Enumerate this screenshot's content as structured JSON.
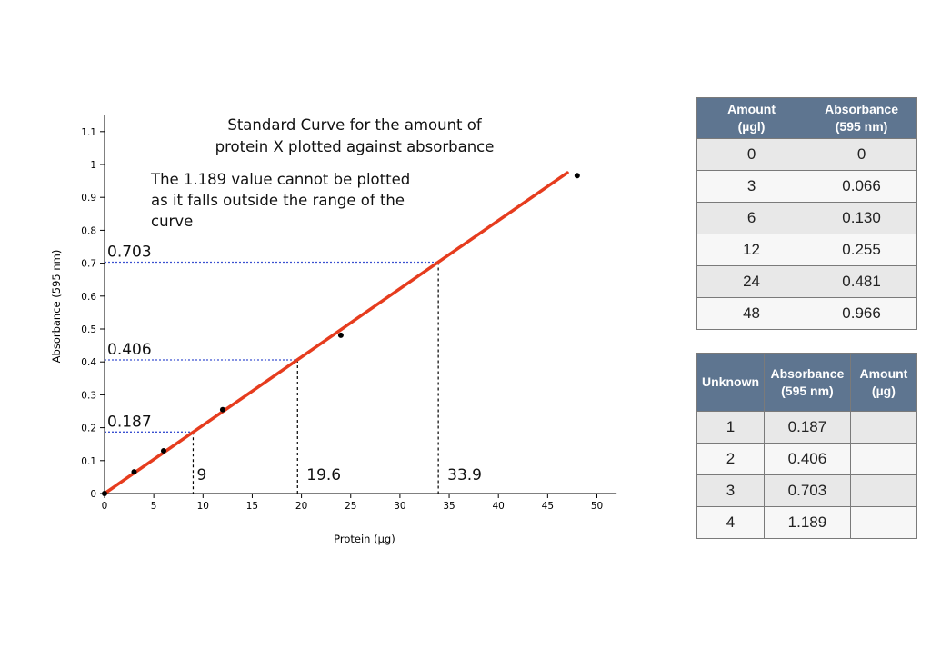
{
  "chart_data": {
    "type": "scatter",
    "title": [
      "Standard Curve for the amount of",
      "protein X plotted against absorbance"
    ],
    "note": [
      "The 1.189 value cannot be plotted",
      "as it falls outside the range of the",
      "curve"
    ],
    "xlabel": "Protein (µg)",
    "ylabel": "Absorbance (595 nm)",
    "xlim": [
      0,
      52
    ],
    "ylim": [
      0,
      1.15
    ],
    "x_ticks": [
      0,
      5,
      10,
      15,
      20,
      25,
      30,
      35,
      40,
      45,
      50
    ],
    "y_ticks": [
      0,
      0.1,
      0.2,
      0.3,
      0.4,
      0.5,
      0.6,
      0.7,
      0.8,
      0.9,
      1,
      1.1
    ],
    "y_tick_labels": [
      "0",
      "0.1",
      "0.2",
      "0.3",
      "0.4",
      "0.5",
      "0.6",
      "0.7",
      "0.8",
      "0.9",
      "1",
      "1.1"
    ],
    "grid": false,
    "points": [
      {
        "x": 0,
        "y": 0
      },
      {
        "x": 3,
        "y": 0.066
      },
      {
        "x": 6,
        "y": 0.13
      },
      {
        "x": 12,
        "y": 0.255
      },
      {
        "x": 24,
        "y": 0.481
      },
      {
        "x": 48,
        "y": 0.966
      }
    ],
    "fit_line": {
      "x_start": 0,
      "y_start": 0,
      "x_end": 47,
      "y_end": 0.975,
      "color": "#e63c1e"
    },
    "readings": [
      {
        "y": 0.187,
        "y_label": "0.187",
        "x": 9,
        "x_label": "9"
      },
      {
        "y": 0.406,
        "y_label": "0.406",
        "x": 19.6,
        "x_label": "19.6"
      },
      {
        "y": 0.703,
        "y_label": "0.703",
        "x": 33.9,
        "x_label": "33.9"
      }
    ],
    "colors": {
      "guide_horizontal": "#3a50d0",
      "guide_vertical": "#000000",
      "points": "#000000"
    }
  },
  "standards_table": {
    "headers": [
      [
        "Amount",
        "(µgl)"
      ],
      [
        "Absorbance",
        "(595 nm)"
      ]
    ],
    "rows": [
      [
        "0",
        "0"
      ],
      [
        "3",
        "0.066"
      ],
      [
        "6",
        "0.130"
      ],
      [
        "12",
        "0.255"
      ],
      [
        "24",
        "0.481"
      ],
      [
        "48",
        "0.966"
      ]
    ]
  },
  "unknowns_table": {
    "headers": [
      [
        "Unknown"
      ],
      [
        "Absorbance",
        "(595 nm)"
      ],
      [
        "Amount",
        "(µg)"
      ]
    ],
    "rows": [
      [
        "1",
        "0.187",
        ""
      ],
      [
        "2",
        "0.406",
        ""
      ],
      [
        "3",
        "0.703",
        ""
      ],
      [
        "4",
        "1.189",
        ""
      ]
    ]
  },
  "colors": {
    "table_header": "#5e7590",
    "row_odd": "#e8e8e8",
    "row_even": "#f7f7f7"
  }
}
